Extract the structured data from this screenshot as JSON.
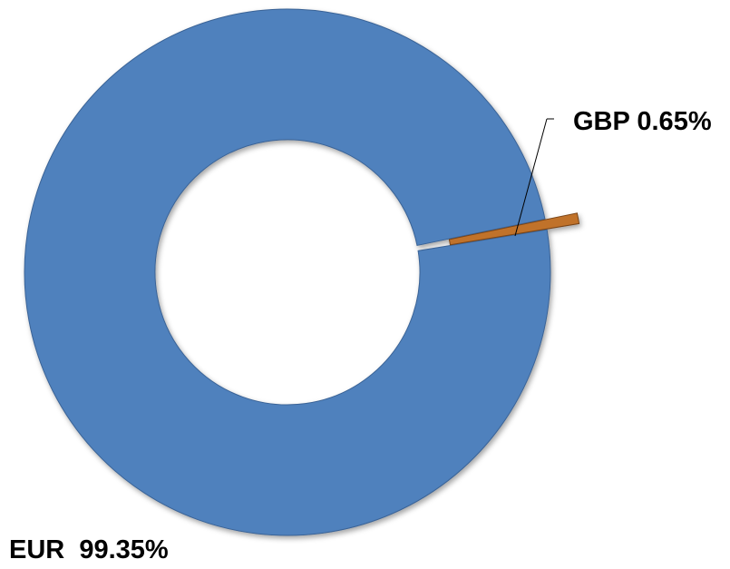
{
  "chart_data": {
    "type": "pie",
    "variant": "doughnut",
    "title": "",
    "slices": [
      {
        "label": "EUR",
        "value": 99.35,
        "display": "EUR  99.35%",
        "color": "#4f81bd",
        "edge": "#3a6396"
      },
      {
        "label": "GBP",
        "value": 0.65,
        "display": "GBP 0.65%",
        "color": "#c0722c",
        "edge": "#7a4418",
        "exploded": true
      }
    ],
    "legend": "none",
    "data_labels": "outside-with-leader-line"
  }
}
